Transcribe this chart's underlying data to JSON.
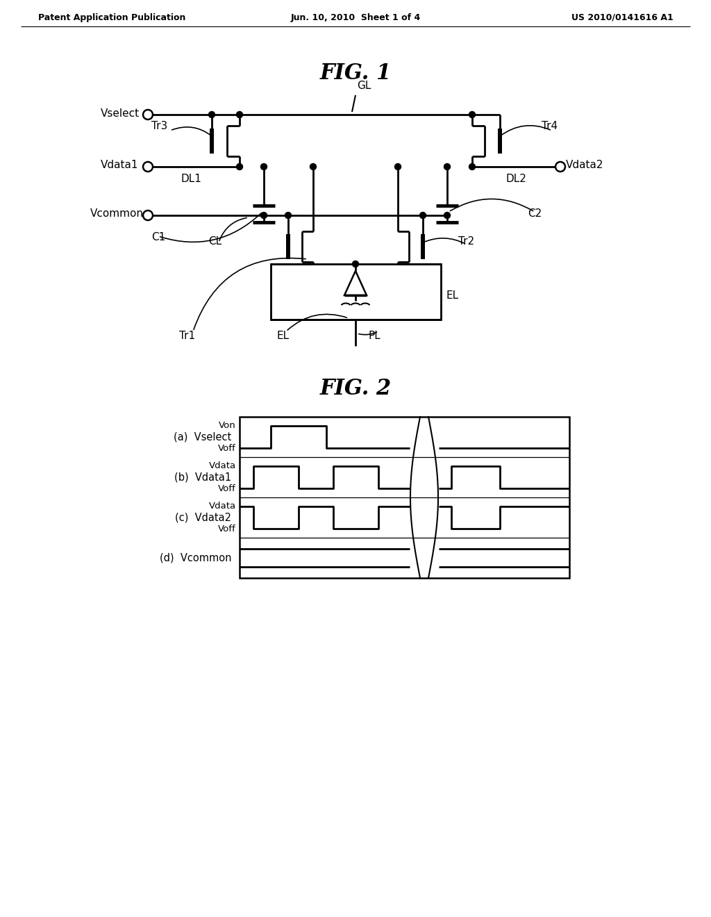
{
  "bg_color": "#ffffff",
  "header_left": "Patent Application Publication",
  "header_mid": "Jun. 10, 2010  Sheet 1 of 4",
  "header_right": "US 2010/0141616 A1",
  "fig1_title": "FIG. 1",
  "fig2_title": "FIG. 2"
}
